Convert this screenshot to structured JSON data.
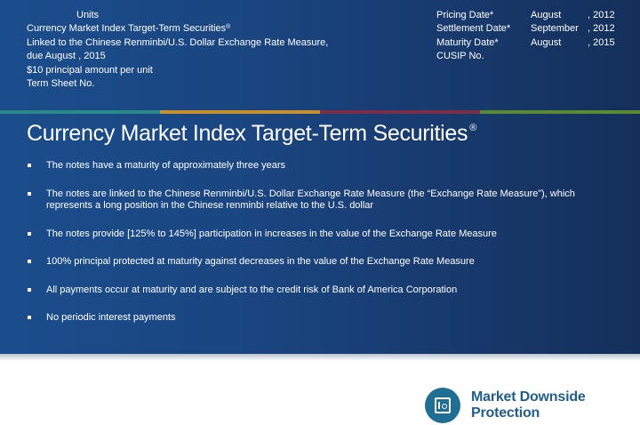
{
  "header_left": {
    "line1": "Units",
    "line2": "Currency Market Index Target-Term Securities",
    "line2_mark": "®",
    "line3": "Linked to the Chinese Renminbi/U.S. Dollar Exchange Rate Measure,",
    "line4": "due August   , 2015",
    "line5": "$10 principal amount per unit",
    "line6": "Term Sheet No."
  },
  "header_right": [
    {
      "label": "Pricing Date*",
      "month": "August",
      "year": ", 2012"
    },
    {
      "label": "Settlement Date*",
      "month": "September",
      "year": ", 2012"
    },
    {
      "label": "Maturity Date*",
      "month": "August",
      "year": ", 2015"
    },
    {
      "label": "CUSIP No.",
      "month": "",
      "year": ""
    }
  ],
  "divider_colors": [
    "#2a8a8a",
    "#c8902c",
    "#7a2e4a",
    "#5a8a34"
  ],
  "title": {
    "text": "Currency Market Index Target-Term Securities",
    "mark": "®"
  },
  "bullets": [
    "The notes have a maturity of approximately three years",
    "The notes are linked to the Chinese Renminbi/U.S. Dollar Exchange Rate Measure (the “Exchange Rate Measure”), which represents a long position in the Chinese renminbi relative to the U.S. dollar",
    "The notes provide [125% to 145%] participation in increases in the value of the Exchange Rate Measure",
    "100% principal protected at maturity against decreases in the value of the Exchange Rate Measure",
    "All payments occur at maturity and are subject to the credit risk of Bank of America Corporation",
    "No periodic interest payments"
  ],
  "logo": {
    "icon": "safe-icon",
    "line1": "Market Downside",
    "line2": "Protection",
    "color": "#1f5f8a"
  }
}
